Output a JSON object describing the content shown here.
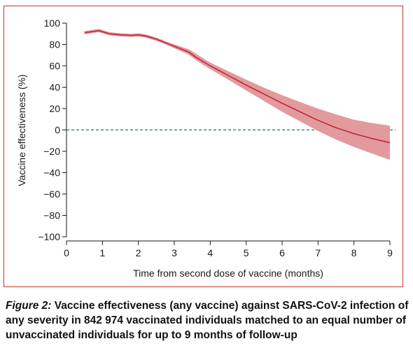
{
  "chart_data": {
    "type": "line",
    "xlabel": "Time from second dose of vaccine (months)",
    "ylabel": "Vaccine effectiveness (%)",
    "xlim": [
      0,
      9
    ],
    "ylim": [
      -100,
      100
    ],
    "x_ticks": [
      0,
      1,
      2,
      3,
      4,
      5,
      6,
      7,
      8,
      9
    ],
    "y_ticks": [
      100,
      80,
      60,
      40,
      20,
      0,
      -20,
      -40,
      -60,
      -80,
      -100
    ],
    "reference_line": {
      "y": 0,
      "style": "dashed",
      "color": "#2f6f6a"
    },
    "series": [
      {
        "color": "#c0283a",
        "band_color": "#e39a9d",
        "x": [
          0.5,
          0.7,
          0.9,
          1.2,
          1.5,
          1.8,
          2.0,
          2.2,
          2.5,
          2.8,
          3.1,
          3.4,
          3.6,
          3.8,
          4.0,
          4.5,
          5.0,
          5.5,
          6.0,
          6.5,
          7.0,
          7.5,
          8.0,
          8.5,
          9.0
        ],
        "values": [
          91,
          92,
          93,
          90,
          89,
          88.5,
          89,
          88,
          85,
          81,
          77,
          73,
          68,
          64,
          60,
          51,
          42,
          33.5,
          25,
          17,
          9,
          2,
          -3.5,
          -8,
          -12
        ],
        "lower": [
          89.5,
          90.5,
          91.5,
          88.5,
          87.5,
          87,
          87.5,
          86.5,
          83.5,
          79.5,
          75,
          70.5,
          65.5,
          61,
          57,
          47,
          37,
          27,
          17,
          8,
          -1,
          -9,
          -16,
          -22,
          -28
        ],
        "upper": [
          92.5,
          93.5,
          94.5,
          91.5,
          90.5,
          90,
          90.5,
          89.5,
          86.5,
          82.5,
          79,
          75.5,
          71.5,
          67,
          63,
          55,
          47,
          39.5,
          32.5,
          26,
          20,
          14.5,
          9.5,
          6.5,
          4
        ]
      }
    ]
  },
  "caption": {
    "figure_label": "Figure 2:",
    "text": " Vaccine effectiveness (any vaccine) against SARS-CoV-2 infection of any severity in 842 974 vaccinated individuals matched to an equal number of unvaccinated individuals for up to 9 months of follow-up"
  }
}
